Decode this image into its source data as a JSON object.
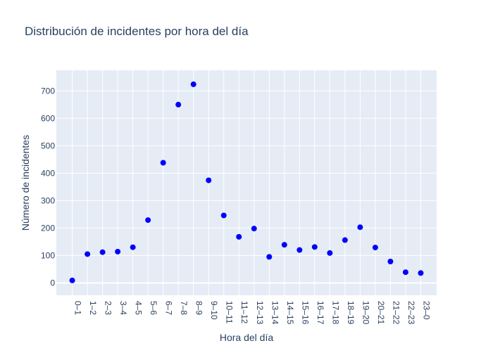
{
  "chart_data": {
    "type": "scatter",
    "title": "Distribución de incidentes por hora del día",
    "xlabel": "Hora del día",
    "ylabel": "Número de incidentes",
    "categories": [
      "0–1",
      "1–2",
      "2–3",
      "3–4",
      "4–5",
      "5–6",
      "6–7",
      "7–8",
      "8–9",
      "9–10",
      "10–11",
      "11–12",
      "12–13",
      "13–14",
      "14–15",
      "15–16",
      "16–17",
      "17–18",
      "18–19",
      "19–20",
      "20–21",
      "21–22",
      "22–23",
      "23–0"
    ],
    "values": [
      9,
      105,
      112,
      114,
      130,
      229,
      438,
      650,
      724,
      374,
      246,
      168,
      198,
      95,
      139,
      120,
      131,
      109,
      156,
      203,
      129,
      78,
      39,
      36
    ],
    "yticks": [
      0,
      100,
      200,
      300,
      400,
      500,
      600,
      700
    ],
    "ylim": [
      -45,
      775
    ],
    "grid": true,
    "legend": "none",
    "colors": {
      "marker": "#0000ff",
      "plot_bg": "#e5ecf6",
      "grid": "#ffffff",
      "text": "#2a3f5f"
    }
  }
}
